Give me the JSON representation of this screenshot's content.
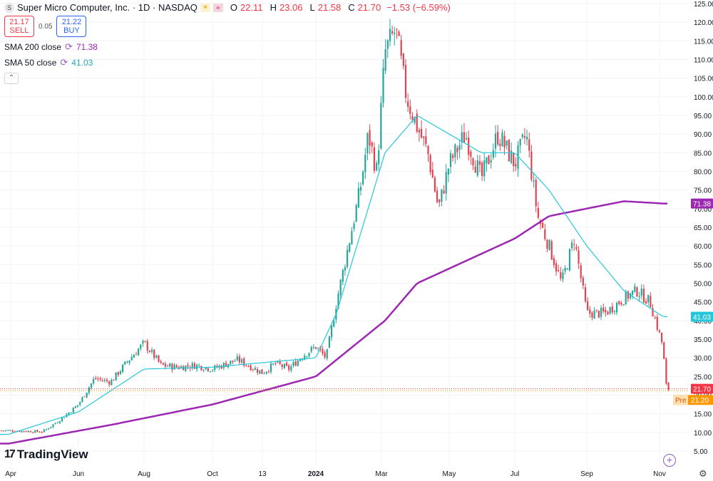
{
  "header": {
    "symbol_icon": "symbol-logo-icon",
    "title": "Super Micro Computer, Inc. · 1D · NASDAQ",
    "ohlc": [
      {
        "label": "O",
        "value": "22.11"
      },
      {
        "label": "H",
        "value": "23.06"
      },
      {
        "label": "L",
        "value": "21.58"
      },
      {
        "label": "C",
        "value": "21.70"
      }
    ],
    "change": "−1.53 (−6.59%)"
  },
  "trade": {
    "sell_price": "21.17",
    "sell_label": "SELL",
    "spread": "0.05",
    "buy_price": "21.22",
    "buy_label": "BUY"
  },
  "indicators": [
    {
      "label": "SMA 200 close",
      "value": "71.38",
      "color": "#9c27b0"
    },
    {
      "label": "SMA 50 close",
      "value": "41.03",
      "color": "#26c6da"
    }
  ],
  "branding": {
    "name": "TradingView"
  },
  "chart_data": {
    "type": "candlestick",
    "y_axis": {
      "min": 5,
      "max": 125,
      "ticks": [
        "5.00",
        "10.00",
        "15.00",
        "20.00",
        "25.00",
        "30.00",
        "35.00",
        "40.00",
        "45.00",
        "50.00",
        "55.00",
        "60.00",
        "65.00",
        "70.00",
        "75.00",
        "80.00",
        "85.00",
        "90.00",
        "95.00",
        "100.00",
        "105.00",
        "110.00",
        "115.00",
        "120.00",
        "125.00"
      ]
    },
    "x_axis": {
      "labels": [
        "Apr",
        "Jun",
        "Aug",
        "Oct",
        "13",
        "2024",
        "Mar",
        "May",
        "Jul",
        "Sep",
        "Nov"
      ]
    },
    "price_anchors": [
      [
        "Apr",
        10.5
      ],
      [
        "May",
        10.2
      ],
      [
        "May",
        13.5
      ],
      [
        "Jun",
        17.5
      ],
      [
        "Jun",
        24.5
      ],
      [
        "Jul",
        23.5
      ],
      [
        "Jul",
        29.0
      ],
      [
        "Aug",
        34.0
      ],
      [
        "Aug",
        28.0
      ],
      [
        "Sep",
        27.5
      ],
      [
        "Sep",
        28.0
      ],
      [
        "Oct",
        27.0
      ],
      [
        "Oct",
        29.5
      ],
      [
        "13",
        26.0
      ],
      [
        "13",
        28.5
      ],
      [
        "Dec",
        27.0
      ],
      [
        "Dec",
        30.5
      ],
      [
        "2024",
        33.0
      ],
      [
        "2024",
        30.0
      ],
      [
        "Jan",
        45.0
      ],
      [
        "Jan",
        60.0
      ],
      [
        "Feb",
        75.0
      ],
      [
        "Feb",
        90.0
      ],
      [
        "Feb",
        80.0
      ],
      [
        "Mar",
        112.0
      ],
      [
        "Mar",
        118.0
      ],
      [
        "Mar",
        100.0
      ],
      [
        "Apr",
        92.0
      ],
      [
        "Apr",
        85.0
      ],
      [
        "Apr",
        70.0
      ],
      [
        "May",
        82.0
      ],
      [
        "May",
        90.0
      ],
      [
        "Jun",
        78.0
      ],
      [
        "Jun",
        90.0
      ],
      [
        "Jul",
        82.0
      ],
      [
        "Jul",
        90.0
      ],
      [
        "Jul",
        68.0
      ],
      [
        "Aug",
        60.0
      ],
      [
        "Aug",
        50.0
      ],
      [
        "Aug",
        62.0
      ],
      [
        "Sep",
        42.0
      ],
      [
        "Sep",
        42.0
      ],
      [
        "Oct",
        46.0
      ],
      [
        "Oct",
        48.0
      ],
      [
        "Oct",
        45.0
      ],
      [
        "Nov",
        33.0
      ],
      [
        "Nov",
        23.0
      ],
      [
        "Nov",
        21.7
      ]
    ],
    "series": [
      {
        "name": "SMA 200 close",
        "anchors": [
          [
            "Apr",
            7.0
          ],
          [
            "Jul",
            12.0
          ],
          [
            "Oct",
            17.5
          ],
          [
            "2024",
            25.0
          ],
          [
            "Mar",
            40.0
          ],
          [
            "Apr",
            50.0
          ],
          [
            "Jul",
            62.0
          ],
          [
            "Aug",
            68.0
          ],
          [
            "Oct",
            72.0
          ],
          [
            "Nov",
            71.38
          ]
        ]
      },
      {
        "name": "SMA 50 close",
        "anchors": [
          [
            "Apr",
            9.5
          ],
          [
            "Jun",
            15.5
          ],
          [
            "Aug",
            27.0
          ],
          [
            "Oct",
            27.5
          ],
          [
            "2024",
            30.0
          ],
          [
            "Jan",
            42.0
          ],
          [
            "Mar",
            85.0
          ],
          [
            "Apr",
            95.0
          ],
          [
            "May",
            90.0
          ],
          [
            "Jun",
            85.0
          ],
          [
            "Jul",
            85.0
          ],
          [
            "Aug",
            75.0
          ],
          [
            "Sep",
            60.0
          ],
          [
            "Oct",
            48.0
          ],
          [
            "Nov",
            41.03
          ]
        ]
      }
    ],
    "price_labels": [
      {
        "name": "sma200",
        "value": "71.38",
        "color": "#9c27b0"
      },
      {
        "name": "sma50",
        "value": "41.03",
        "color": "#26c6da"
      },
      {
        "name": "last",
        "value": "21.70",
        "color": "#f23645"
      },
      {
        "name": "pre",
        "tag": "Pre",
        "value": "21.20",
        "color": "#ff9800"
      }
    ]
  }
}
